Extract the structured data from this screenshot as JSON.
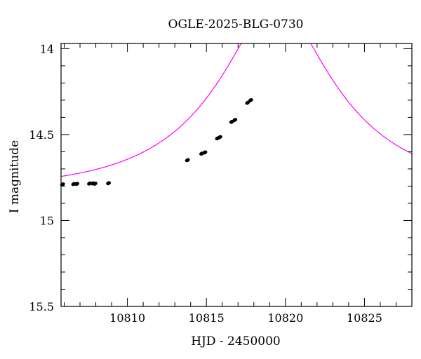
{
  "chart_data": {
    "type": "scatter",
    "title": "OGLE-2025-BLG-0730",
    "xlabel": "HJD - 2450000",
    "ylabel": "I magnitude",
    "xlim": [
      10805.8,
      10828.0
    ],
    "ylim": [
      15.5,
      13.97
    ],
    "y_inverted": true,
    "grid": false,
    "x_major_ticks": [
      10810,
      10815,
      10820,
      10825
    ],
    "x_minor_step": 1,
    "y_major_ticks": [
      14,
      14.5,
      15,
      15.5
    ],
    "y_tick_labels": [
      "14",
      "14.5",
      "15",
      "15.5"
    ],
    "y_minor_step": 0.1,
    "series": [
      {
        "kind": "points",
        "color": "#000000",
        "error_color": "#3a3a8a",
        "x": [
          10805.9,
          10806.6,
          10806.8,
          10807.6,
          10807.8,
          10807.95,
          10808.8,
          10813.8,
          10814.7,
          10814.9,
          10815.7,
          10815.85,
          10816.6,
          10816.8,
          10817.6,
          10817.8
        ],
        "y": [
          14.79,
          14.788,
          14.787,
          14.785,
          14.784,
          14.786,
          14.783,
          14.649,
          14.611,
          14.604,
          14.522,
          14.515,
          14.426,
          14.415,
          14.315,
          14.3
        ]
      },
      {
        "kind": "model",
        "color": "#ff00ff",
        "model": {
          "t0": 10819.4,
          "tE": 8.0,
          "u0": 0.33,
          "base_mag": 14.82,
          "blend_fraction": 0.8
        }
      }
    ]
  }
}
